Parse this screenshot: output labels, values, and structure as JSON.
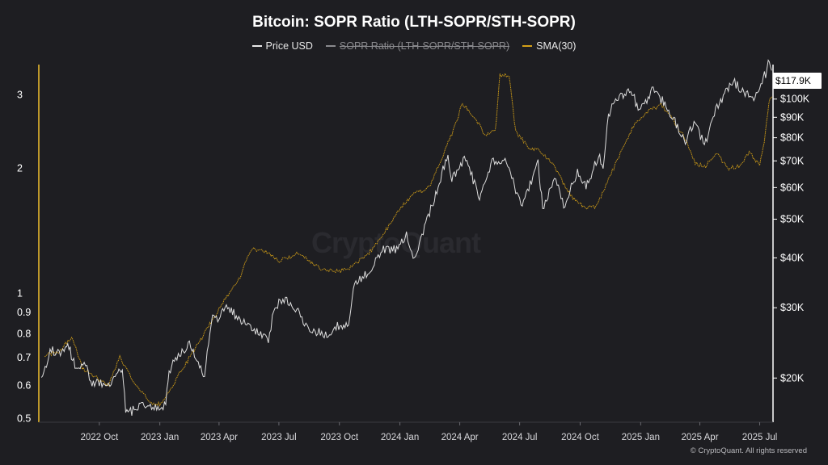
{
  "title": "Bitcoin: SOPR Ratio (LTH-SOPR/STH-SOPR)",
  "watermark": "CryptoQuant",
  "copyright": "© CryptoQuant. All rights reserved",
  "legend": [
    {
      "label": "Price USD",
      "color": "#e8e8e8",
      "struck": false
    },
    {
      "label": "SOPR Ratio (LTH-SOPR/STH-SOPR)",
      "color": "#8a8a8e",
      "struck": true
    },
    {
      "label": "SMA(30)",
      "color": "#d4a017",
      "struck": false
    }
  ],
  "price_badge": "$117.9K",
  "colors": {
    "price": "#e8e8e8",
    "sma": "#d4a017",
    "axis_left": "#f2c12e",
    "background": "#1e1e22"
  },
  "chart_data": {
    "type": "line",
    "x_axis": {
      "type": "date",
      "range": [
        "2022-07-01",
        "2025-07-20"
      ],
      "ticks": [
        {
          "date": "2022-10-01",
          "label": "2022 Oct"
        },
        {
          "date": "2023-01-01",
          "label": "2023 Jan"
        },
        {
          "date": "2023-04-01",
          "label": "2023 Apr"
        },
        {
          "date": "2023-07-01",
          "label": "2023 Jul"
        },
        {
          "date": "2023-10-01",
          "label": "2023 Oct"
        },
        {
          "date": "2024-01-01",
          "label": "2024 Jan"
        },
        {
          "date": "2024-04-01",
          "label": "2024 Apr"
        },
        {
          "date": "2024-07-01",
          "label": "2024 Jul"
        },
        {
          "date": "2024-10-01",
          "label": "2024 Oct"
        },
        {
          "date": "2025-01-01",
          "label": "2025 Jan"
        },
        {
          "date": "2025-04-01",
          "label": "2025 Apr"
        },
        {
          "date": "2025-07-01",
          "label": "2025 Jul"
        }
      ]
    },
    "y_left": {
      "scale": "log",
      "range": [
        0.49,
        3.55
      ],
      "ticks": [
        {
          "value": 3,
          "label": "3"
        },
        {
          "value": 2,
          "label": "2"
        },
        {
          "value": 1,
          "label": "1"
        },
        {
          "value": 0.9,
          "label": "0.9"
        },
        {
          "value": 0.8,
          "label": "0.8"
        },
        {
          "value": 0.7,
          "label": "0.7"
        },
        {
          "value": 0.6,
          "label": "0.6"
        },
        {
          "value": 0.5,
          "label": "0.5"
        }
      ]
    },
    "y_right": {
      "scale": "log",
      "range": [
        15500,
        122000
      ],
      "ticks": [
        {
          "value": 100000,
          "label": "$100K"
        },
        {
          "value": 90000,
          "label": "$90K"
        },
        {
          "value": 80000,
          "label": "$80K"
        },
        {
          "value": 70000,
          "label": "$70K"
        },
        {
          "value": 60000,
          "label": "$60K"
        },
        {
          "value": 50000,
          "label": "$50K"
        },
        {
          "value": 40000,
          "label": "$40K"
        },
        {
          "value": 30000,
          "label": "$30K"
        },
        {
          "value": 20000,
          "label": "$20K"
        }
      ]
    },
    "series": [
      {
        "name": "Price USD",
        "axis": "right",
        "points": [
          [
            "2022-07-05",
            20000
          ],
          [
            "2022-07-20",
            23500
          ],
          [
            "2022-08-01",
            23000
          ],
          [
            "2022-08-14",
            24300
          ],
          [
            "2022-08-25",
            21500
          ],
          [
            "2022-09-10",
            21500
          ],
          [
            "2022-09-20",
            19200
          ],
          [
            "2022-10-01",
            19400
          ],
          [
            "2022-10-15",
            19300
          ],
          [
            "2022-10-29",
            20700
          ],
          [
            "2022-11-05",
            21200
          ],
          [
            "2022-11-10",
            16400
          ],
          [
            "2022-11-25",
            16600
          ],
          [
            "2022-12-10",
            17200
          ],
          [
            "2022-12-31",
            16550
          ],
          [
            "2023-01-10",
            17200
          ],
          [
            "2023-01-15",
            20800
          ],
          [
            "2023-01-31",
            23100
          ],
          [
            "2023-02-15",
            24400
          ],
          [
            "2023-03-10",
            20200
          ],
          [
            "2023-03-20",
            27900
          ],
          [
            "2023-04-01",
            28400
          ],
          [
            "2023-04-14",
            30400
          ],
          [
            "2023-05-01",
            28000
          ],
          [
            "2023-05-15",
            27000
          ],
          [
            "2023-06-15",
            25000
          ],
          [
            "2023-06-25",
            30500
          ],
          [
            "2023-07-13",
            31400
          ],
          [
            "2023-08-01",
            29300
          ],
          [
            "2023-08-17",
            26200
          ],
          [
            "2023-09-10",
            25800
          ],
          [
            "2023-09-30",
            27000
          ],
          [
            "2023-10-15",
            27000
          ],
          [
            "2023-10-24",
            34500
          ],
          [
            "2023-11-15",
            37000
          ],
          [
            "2023-12-05",
            42000
          ],
          [
            "2023-12-31",
            42300
          ],
          [
            "2024-01-11",
            46500
          ],
          [
            "2024-01-23",
            39500
          ],
          [
            "2024-02-15",
            52000
          ],
          [
            "2024-03-01",
            62000
          ],
          [
            "2024-03-14",
            73000
          ],
          [
            "2024-03-20",
            62500
          ],
          [
            "2024-04-08",
            71500
          ],
          [
            "2024-05-01",
            57000
          ],
          [
            "2024-05-20",
            70000
          ],
          [
            "2024-06-07",
            71000
          ],
          [
            "2024-07-05",
            54000
          ],
          [
            "2024-07-29",
            69500
          ],
          [
            "2024-08-05",
            53500
          ],
          [
            "2024-08-25",
            64000
          ],
          [
            "2024-09-06",
            53500
          ],
          [
            "2024-09-27",
            66000
          ],
          [
            "2024-10-10",
            60000
          ],
          [
            "2024-10-29",
            72500
          ],
          [
            "2024-11-05",
            68000
          ],
          [
            "2024-11-13",
            90000
          ],
          [
            "2024-11-22",
            99000
          ],
          [
            "2024-12-17",
            106000
          ],
          [
            "2024-12-30",
            92500
          ],
          [
            "2025-01-20",
            106000
          ],
          [
            "2025-02-05",
            98000
          ],
          [
            "2025-02-28",
            84000
          ],
          [
            "2025-03-10",
            78500
          ],
          [
            "2025-03-25",
            87500
          ],
          [
            "2025-04-08",
            76500
          ],
          [
            "2025-04-25",
            94000
          ],
          [
            "2025-05-22",
            111000
          ],
          [
            "2025-06-05",
            104000
          ],
          [
            "2025-06-22",
            101000
          ],
          [
            "2025-07-01",
            107000
          ],
          [
            "2025-07-10",
            116000
          ],
          [
            "2025-07-14",
            122000
          ],
          [
            "2025-07-19",
            117900
          ]
        ]
      },
      {
        "name": "SMA(30)",
        "axis": "left",
        "points": [
          [
            "2022-07-10",
            0.71
          ],
          [
            "2022-08-01",
            0.72
          ],
          [
            "2022-08-20",
            0.79
          ],
          [
            "2022-09-05",
            0.66
          ],
          [
            "2022-10-01",
            0.62
          ],
          [
            "2022-10-15",
            0.6
          ],
          [
            "2022-11-01",
            0.7
          ],
          [
            "2022-11-20",
            0.62
          ],
          [
            "2022-12-15",
            0.55
          ],
          [
            "2023-01-01",
            0.54
          ],
          [
            "2023-01-20",
            0.6
          ],
          [
            "2023-02-10",
            0.68
          ],
          [
            "2023-03-10",
            0.8
          ],
          [
            "2023-04-01",
            0.92
          ],
          [
            "2023-05-01",
            1.08
          ],
          [
            "2023-05-20",
            1.28
          ],
          [
            "2023-06-15",
            1.25
          ],
          [
            "2023-07-01",
            1.2
          ],
          [
            "2023-08-01",
            1.25
          ],
          [
            "2023-09-01",
            1.15
          ],
          [
            "2023-10-01",
            1.13
          ],
          [
            "2023-10-20",
            1.16
          ],
          [
            "2023-11-15",
            1.25
          ],
          [
            "2023-12-15",
            1.45
          ],
          [
            "2024-01-01",
            1.6
          ],
          [
            "2024-01-20",
            1.72
          ],
          [
            "2024-02-15",
            1.8
          ],
          [
            "2024-03-01",
            2.05
          ],
          [
            "2024-03-20",
            2.42
          ],
          [
            "2024-04-05",
            2.85
          ],
          [
            "2024-04-20",
            2.7
          ],
          [
            "2024-05-10",
            2.4
          ],
          [
            "2024-05-25",
            2.45
          ],
          [
            "2024-06-01",
            3.35
          ],
          [
            "2024-06-15",
            3.35
          ],
          [
            "2024-06-25",
            2.45
          ],
          [
            "2024-07-15",
            2.25
          ],
          [
            "2024-08-01",
            2.2
          ],
          [
            "2024-08-20",
            2.05
          ],
          [
            "2024-09-05",
            1.85
          ],
          [
            "2024-09-20",
            1.7
          ],
          [
            "2024-10-10",
            1.6
          ],
          [
            "2024-10-25",
            1.62
          ],
          [
            "2024-11-15",
            1.9
          ],
          [
            "2024-12-05",
            2.25
          ],
          [
            "2024-12-25",
            2.6
          ],
          [
            "2025-01-15",
            2.75
          ],
          [
            "2025-02-01",
            2.85
          ],
          [
            "2025-02-20",
            2.6
          ],
          [
            "2025-03-10",
            2.35
          ],
          [
            "2025-03-25",
            2.05
          ],
          [
            "2025-04-10",
            2.02
          ],
          [
            "2025-04-25",
            2.18
          ],
          [
            "2025-05-15",
            2.0
          ],
          [
            "2025-06-01",
            2.03
          ],
          [
            "2025-06-15",
            2.18
          ],
          [
            "2025-07-01",
            2.03
          ],
          [
            "2025-07-08",
            2.3
          ],
          [
            "2025-07-15",
            2.9
          ],
          [
            "2025-07-20",
            2.98
          ]
        ]
      }
    ],
    "grid": false,
    "legend_position": "top-center"
  }
}
